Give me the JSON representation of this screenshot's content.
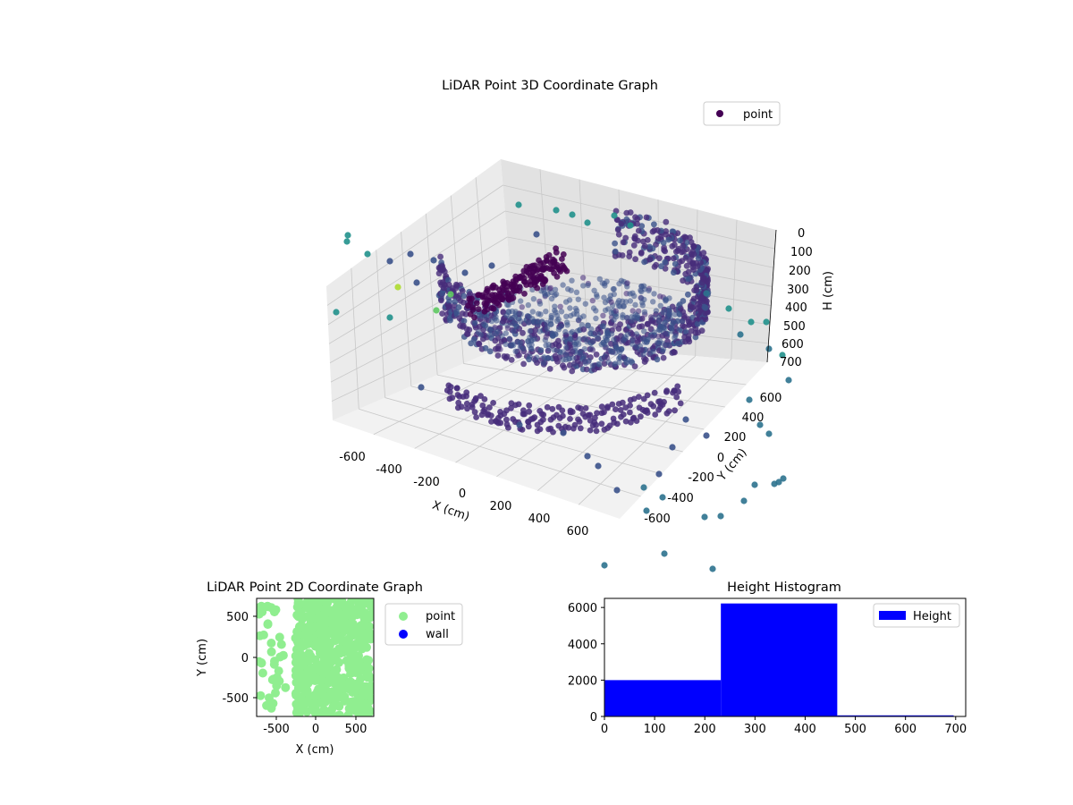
{
  "chart_data": [
    {
      "type": "scatter",
      "projection": "3d",
      "title": "LiDAR Point 3D Coordinate Graph",
      "xlabel": "X (cm)",
      "ylabel": "Y (cm)",
      "zlabel": "H (cm)",
      "xticks": [
        "-600",
        "-400",
        "-200",
        "0",
        "200",
        "400",
        "600"
      ],
      "yticks": [
        "-600",
        "-400",
        "-200",
        "0",
        "200",
        "400",
        "600"
      ],
      "zticks": [
        "0",
        "100",
        "200",
        "300",
        "400",
        "500",
        "600",
        "700"
      ],
      "xlim": [
        -700,
        700
      ],
      "ylim": [
        -700,
        700
      ],
      "zlim": [
        0,
        700
      ],
      "z_axis_inverted": true,
      "colormap": "viridis",
      "legend": [
        {
          "label": "point",
          "color": "#440154"
        }
      ],
      "legend_position": "top-right",
      "grid": true,
      "series": [
        {
          "name": "point",
          "description_points": [
            {
              "x": -660,
              "y": 300,
              "z": 80
            },
            {
              "x": -600,
              "y": 200,
              "z": 520
            },
            {
              "x": 620,
              "y": -300,
              "z": 520
            },
            {
              "x": 650,
              "y": -500,
              "z": 480
            },
            {
              "x": 700,
              "y": -650,
              "z": 470
            },
            {
              "x": -300,
              "y": 550,
              "z": 520
            },
            {
              "x": 150,
              "y": 650,
              "z": 470
            }
          ]
        }
      ]
    },
    {
      "type": "scatter",
      "title": "LiDAR Point 2D Coordinate Graph",
      "xlabel": "X (cm)",
      "ylabel": "Y (cm)",
      "xticks": [
        "-500",
        "0",
        "500"
      ],
      "yticks": [
        "-500",
        "0",
        "500"
      ],
      "xlim": [
        -720,
        720
      ],
      "ylim": [
        -720,
        720
      ],
      "legend": [
        {
          "label": "point",
          "color": "#90ee90"
        },
        {
          "label": "wall",
          "color": "#0000ff"
        }
      ],
      "legend_position": "outside-right",
      "series": [
        {
          "name": "point",
          "color": "#90ee90"
        },
        {
          "name": "wall",
          "color": "#0000ff"
        }
      ]
    },
    {
      "type": "bar",
      "subtype": "histogram",
      "title": "Height Histogram",
      "xticks": [
        "0",
        "100",
        "200",
        "300",
        "400",
        "500",
        "600",
        "700"
      ],
      "yticks": [
        "0",
        "2000",
        "4000",
        "6000"
      ],
      "xlim": [
        0,
        720
      ],
      "ylim": [
        0,
        6500
      ],
      "bins": [
        {
          "x0": 0,
          "x1": 232,
          "count": 2000
        },
        {
          "x0": 232,
          "x1": 464,
          "count": 6220
        },
        {
          "x0": 464,
          "x1": 696,
          "count": 60
        }
      ],
      "legend": [
        {
          "label": "Height",
          "color": "#0000ff"
        }
      ],
      "legend_position": "top-right",
      "series": [
        {
          "name": "Height",
          "color": "#0000ff"
        }
      ]
    }
  ]
}
